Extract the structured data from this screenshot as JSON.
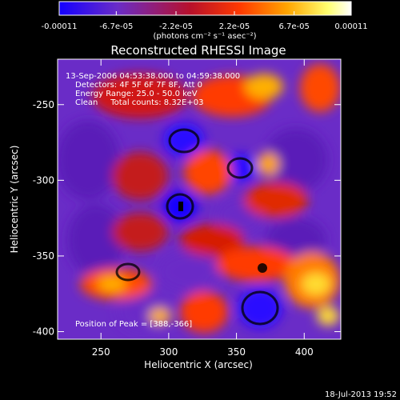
{
  "chart_data": {
    "type": "heatmap",
    "title": "Reconstructed RHESSI Image",
    "xlabel": "Heliocentric X (arcsec)",
    "ylabel": "Heliocentric Y (arcsec)",
    "xlim": [
      218,
      427
    ],
    "ylim": [
      -405,
      -220
    ],
    "x_ticks": [
      250,
      300,
      350,
      400
    ],
    "y_ticks": [
      -250,
      -300,
      -350,
      -400
    ],
    "colorbar": {
      "colormap": [
        "#1400ff",
        "#6a2cc7",
        "#c01020",
        "#ff4a00",
        "#ffa500",
        "#ffff70",
        "#ffffff"
      ],
      "range": [
        -0.00011,
        0.00011
      ],
      "tick_labels": [
        "-0.00011",
        "-6.7e-05",
        "-2.2e-05",
        "2.2e-05",
        "6.7e-05",
        "0.00011"
      ],
      "tick_values": [
        -0.00011,
        -6.7e-05,
        -2.2e-05,
        2.2e-05,
        6.7e-05,
        0.00011
      ],
      "unit_label": "(photons cm⁻² s⁻¹ asec⁻²)"
    },
    "peak": {
      "x": 388,
      "y": -366
    }
  },
  "annotations": {
    "time_range": "13-Sep-2006 04:53:38.000 to 04:59:38.000",
    "detectors": "Detectors: 4F 5F 6F 7F 8F, Att 0",
    "energy_range": "Energy Range: 25.0 - 50.0 keV",
    "method_counts": "Clean     Total counts: 8.32E+03",
    "peak_position": "Position of Peak = [388,-366]"
  },
  "footer": {
    "timestamp": "18-Jul-2013 19:52"
  },
  "colors": {
    "background": "#000000",
    "text": "#ffffff"
  }
}
